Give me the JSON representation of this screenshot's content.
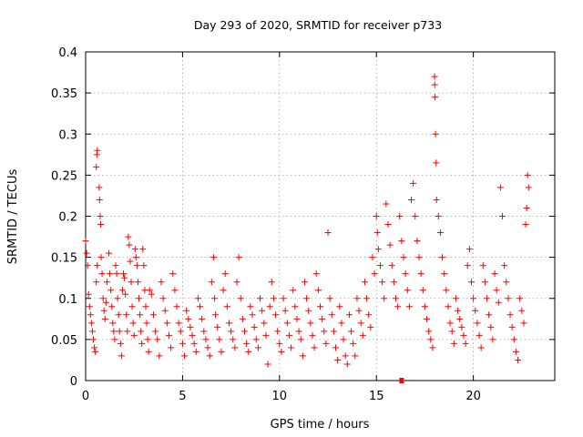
{
  "chart_data": {
    "type": "scatter",
    "title": "Day 293 of 2020, SRMTID for receiver p733",
    "xlabel": "GPS time / hours",
    "ylabel": "SRMTID / TECUs",
    "xlim": [
      0,
      24.2
    ],
    "ylim": [
      0,
      0.4
    ],
    "x_ticks": [
      0,
      5,
      10,
      15,
      20
    ],
    "x_tick_labels": [
      "0",
      "5",
      "10",
      "15",
      "20"
    ],
    "y_ticks": [
      0,
      0.05,
      0.1,
      0.15,
      0.2,
      0.25,
      0.3,
      0.35,
      0.4
    ],
    "y_tick_labels": [
      "0",
      "0.05",
      "0.1",
      "0.15",
      "0.2",
      "0.25",
      "0.3",
      "0.35",
      "0.4"
    ],
    "grid": true,
    "marker": "+",
    "color": "#ff0000",
    "series": [
      {
        "name": "SRMTID",
        "points": [
          [
            0.0,
            0.17
          ],
          [
            0.05,
            0.155
          ],
          [
            0.1,
            0.14
          ],
          [
            0.15,
            0.105
          ],
          [
            0.2,
            0.09
          ],
          [
            0.25,
            0.08
          ],
          [
            0.3,
            0.07
          ],
          [
            0.35,
            0.06
          ],
          [
            0.4,
            0.05
          ],
          [
            0.45,
            0.04
          ],
          [
            0.5,
            0.035
          ],
          [
            0.55,
            0.12
          ],
          [
            0.6,
            0.14
          ],
          [
            0.55,
            0.26
          ],
          [
            0.58,
            0.275
          ],
          [
            0.6,
            0.28
          ],
          [
            0.7,
            0.235
          ],
          [
            0.72,
            0.22
          ],
          [
            0.75,
            0.2
          ],
          [
            0.78,
            0.19
          ],
          [
            0.8,
            0.15
          ],
          [
            0.85,
            0.13
          ],
          [
            0.9,
            0.1
          ],
          [
            0.95,
            0.085
          ],
          [
            1.0,
            0.075
          ],
          [
            1.05,
            0.095
          ],
          [
            1.1,
            0.12
          ],
          [
            1.2,
            0.155
          ],
          [
            1.25,
            0.13
          ],
          [
            1.3,
            0.11
          ],
          [
            1.35,
            0.09
          ],
          [
            1.4,
            0.07
          ],
          [
            1.45,
            0.06
          ],
          [
            1.5,
            0.05
          ],
          [
            1.55,
            0.14
          ],
          [
            1.6,
            0.13
          ],
          [
            1.65,
            0.1
          ],
          [
            1.7,
            0.08
          ],
          [
            1.75,
            0.06
          ],
          [
            1.8,
            0.045
          ],
          [
            1.85,
            0.03
          ],
          [
            1.9,
            0.11
          ],
          [
            1.95,
            0.13
          ],
          [
            2.0,
            0.125
          ],
          [
            2.05,
            0.105
          ],
          [
            2.1,
            0.08
          ],
          [
            2.15,
            0.06
          ],
          [
            2.2,
            0.175
          ],
          [
            2.25,
            0.165
          ],
          [
            2.3,
            0.145
          ],
          [
            2.35,
            0.12
          ],
          [
            2.4,
            0.09
          ],
          [
            2.45,
            0.07
          ],
          [
            2.5,
            0.055
          ],
          [
            2.55,
            0.16
          ],
          [
            2.6,
            0.15
          ],
          [
            2.65,
            0.14
          ],
          [
            2.7,
            0.12
          ],
          [
            2.75,
            0.1
          ],
          [
            2.8,
            0.08
          ],
          [
            2.85,
            0.06
          ],
          [
            2.9,
            0.045
          ],
          [
            2.95,
            0.16
          ],
          [
            3.0,
            0.14
          ],
          [
            3.05,
            0.11
          ],
          [
            3.1,
            0.09
          ],
          [
            3.15,
            0.07
          ],
          [
            3.2,
            0.05
          ],
          [
            3.25,
            0.035
          ],
          [
            3.3,
            0.11
          ],
          [
            3.4,
            0.105
          ],
          [
            3.5,
            0.08
          ],
          [
            3.6,
            0.06
          ],
          [
            3.7,
            0.05
          ],
          [
            3.8,
            0.03
          ],
          [
            3.9,
            0.12
          ],
          [
            4.0,
            0.1
          ],
          [
            4.1,
            0.085
          ],
          [
            4.2,
            0.07
          ],
          [
            4.3,
            0.055
          ],
          [
            4.4,
            0.04
          ],
          [
            4.5,
            0.13
          ],
          [
            4.6,
            0.11
          ],
          [
            4.7,
            0.09
          ],
          [
            4.8,
            0.07
          ],
          [
            4.9,
            0.06
          ],
          [
            5.0,
            0.045
          ],
          [
            5.1,
            0.03
          ],
          [
            5.2,
            0.085
          ],
          [
            5.3,
            0.075
          ],
          [
            5.4,
            0.065
          ],
          [
            5.5,
            0.055
          ],
          [
            5.6,
            0.045
          ],
          [
            5.7,
            0.035
          ],
          [
            5.8,
            0.1
          ],
          [
            5.9,
            0.09
          ],
          [
            6.0,
            0.075
          ],
          [
            6.1,
            0.06
          ],
          [
            6.2,
            0.05
          ],
          [
            6.3,
            0.04
          ],
          [
            6.4,
            0.03
          ],
          [
            6.5,
            0.12
          ],
          [
            6.6,
            0.15
          ],
          [
            6.65,
            0.1
          ],
          [
            6.7,
            0.08
          ],
          [
            6.8,
            0.065
          ],
          [
            6.9,
            0.05
          ],
          [
            7.0,
            0.035
          ],
          [
            7.1,
            0.11
          ],
          [
            7.2,
            0.13
          ],
          [
            7.3,
            0.09
          ],
          [
            7.4,
            0.07
          ],
          [
            7.5,
            0.06
          ],
          [
            7.6,
            0.05
          ],
          [
            7.7,
            0.04
          ],
          [
            7.8,
            0.12
          ],
          [
            7.9,
            0.15
          ],
          [
            8.0,
            0.1
          ],
          [
            8.1,
            0.075
          ],
          [
            8.2,
            0.06
          ],
          [
            8.3,
            0.045
          ],
          [
            8.4,
            0.035
          ],
          [
            8.5,
            0.09
          ],
          [
            8.6,
            0.08
          ],
          [
            8.7,
            0.065
          ],
          [
            8.8,
            0.05
          ],
          [
            8.9,
            0.04
          ],
          [
            9.0,
            0.1
          ],
          [
            9.1,
            0.085
          ],
          [
            9.2,
            0.07
          ],
          [
            9.3,
            0.055
          ],
          [
            9.4,
            0.02
          ],
          [
            9.5,
            0.09
          ],
          [
            9.6,
            0.12
          ],
          [
            9.7,
            0.1
          ],
          [
            9.8,
            0.08
          ],
          [
            9.9,
            0.06
          ],
          [
            10.0,
            0.045
          ],
          [
            10.1,
            0.035
          ],
          [
            10.2,
            0.1
          ],
          [
            10.3,
            0.085
          ],
          [
            10.4,
            0.07
          ],
          [
            10.5,
            0.055
          ],
          [
            10.6,
            0.04
          ],
          [
            10.7,
            0.11
          ],
          [
            10.8,
            0.09
          ],
          [
            10.9,
            0.075
          ],
          [
            11.0,
            0.06
          ],
          [
            11.1,
            0.05
          ],
          [
            11.2,
            0.03
          ],
          [
            11.3,
            0.12
          ],
          [
            11.4,
            0.1
          ],
          [
            11.5,
            0.085
          ],
          [
            11.6,
            0.07
          ],
          [
            11.7,
            0.055
          ],
          [
            11.8,
            0.04
          ],
          [
            11.9,
            0.13
          ],
          [
            12.0,
            0.11
          ],
          [
            12.1,
            0.09
          ],
          [
            12.2,
            0.075
          ],
          [
            12.3,
            0.06
          ],
          [
            12.4,
            0.045
          ],
          [
            12.5,
            0.18
          ],
          [
            12.6,
            0.1
          ],
          [
            12.7,
            0.08
          ],
          [
            12.8,
            0.06
          ],
          [
            12.9,
            0.04
          ],
          [
            13.0,
            0.025
          ],
          [
            13.1,
            0.09
          ],
          [
            13.2,
            0.07
          ],
          [
            13.3,
            0.05
          ],
          [
            13.4,
            0.03
          ],
          [
            13.5,
            0.02
          ],
          [
            13.6,
            0.08
          ],
          [
            13.7,
            0.06
          ],
          [
            13.8,
            0.045
          ],
          [
            13.9,
            0.03
          ],
          [
            14.0,
            0.1
          ],
          [
            14.1,
            0.085
          ],
          [
            14.2,
            0.07
          ],
          [
            14.3,
            0.055
          ],
          [
            14.4,
            0.12
          ],
          [
            14.5,
            0.1
          ],
          [
            14.6,
            0.08
          ],
          [
            14.7,
            0.065
          ],
          [
            14.8,
            0.15
          ],
          [
            14.9,
            0.13
          ],
          [
            15.0,
            0.2
          ],
          [
            15.05,
            0.18
          ],
          [
            15.1,
            0.16
          ],
          [
            15.2,
            0.14
          ],
          [
            15.3,
            0.12
          ],
          [
            15.4,
            0.1
          ],
          [
            15.5,
            0.215
          ],
          [
            15.6,
            0.19
          ],
          [
            15.7,
            0.165
          ],
          [
            15.8,
            0.14
          ],
          [
            15.9,
            0.12
          ],
          [
            16.0,
            0.1
          ],
          [
            16.1,
            0.09
          ],
          [
            16.2,
            0.2
          ],
          [
            16.3,
            0.17
          ],
          [
            16.4,
            0.15
          ],
          [
            16.5,
            0.13
          ],
          [
            16.6,
            0.11
          ],
          [
            16.7,
            0.09
          ],
          [
            16.8,
            0.22
          ],
          [
            16.9,
            0.24
          ],
          [
            17.0,
            0.2
          ],
          [
            17.1,
            0.17
          ],
          [
            17.2,
            0.15
          ],
          [
            17.3,
            0.13
          ],
          [
            17.4,
            0.11
          ],
          [
            17.5,
            0.09
          ],
          [
            17.6,
            0.075
          ],
          [
            17.7,
            0.06
          ],
          [
            17.8,
            0.05
          ],
          [
            17.9,
            0.04
          ],
          [
            18.0,
            0.37
          ],
          [
            18.01,
            0.36
          ],
          [
            18.02,
            0.345
          ],
          [
            18.05,
            0.3
          ],
          [
            18.08,
            0.265
          ],
          [
            18.1,
            0.22
          ],
          [
            18.2,
            0.2
          ],
          [
            18.3,
            0.18
          ],
          [
            18.4,
            0.15
          ],
          [
            18.5,
            0.13
          ],
          [
            18.6,
            0.11
          ],
          [
            18.7,
            0.09
          ],
          [
            18.8,
            0.07
          ],
          [
            18.9,
            0.06
          ],
          [
            19.0,
            0.045
          ],
          [
            19.1,
            0.1
          ],
          [
            19.2,
            0.085
          ],
          [
            19.3,
            0.075
          ],
          [
            19.4,
            0.065
          ],
          [
            19.5,
            0.055
          ],
          [
            19.6,
            0.045
          ],
          [
            19.7,
            0.14
          ],
          [
            19.8,
            0.16
          ],
          [
            19.9,
            0.12
          ],
          [
            20.0,
            0.1
          ],
          [
            20.1,
            0.085
          ],
          [
            20.2,
            0.07
          ],
          [
            20.3,
            0.055
          ],
          [
            20.4,
            0.04
          ],
          [
            20.5,
            0.14
          ],
          [
            20.6,
            0.12
          ],
          [
            20.7,
            0.1
          ],
          [
            20.8,
            0.08
          ],
          [
            20.9,
            0.065
          ],
          [
            21.0,
            0.05
          ],
          [
            21.1,
            0.13
          ],
          [
            21.2,
            0.11
          ],
          [
            21.3,
            0.095
          ],
          [
            21.4,
            0.235
          ],
          [
            21.5,
            0.2
          ],
          [
            21.6,
            0.14
          ],
          [
            21.7,
            0.12
          ],
          [
            21.8,
            0.1
          ],
          [
            21.9,
            0.08
          ],
          [
            22.0,
            0.065
          ],
          [
            22.1,
            0.05
          ],
          [
            22.2,
            0.035
          ],
          [
            22.3,
            0.025
          ],
          [
            22.4,
            0.1
          ],
          [
            22.5,
            0.085
          ],
          [
            22.6,
            0.07
          ],
          [
            22.7,
            0.19
          ],
          [
            22.75,
            0.21
          ],
          [
            22.8,
            0.25
          ],
          [
            22.85,
            0.235
          ]
        ]
      }
    ],
    "extra_marker": {
      "x": 16.3,
      "y": 0.0
    }
  }
}
